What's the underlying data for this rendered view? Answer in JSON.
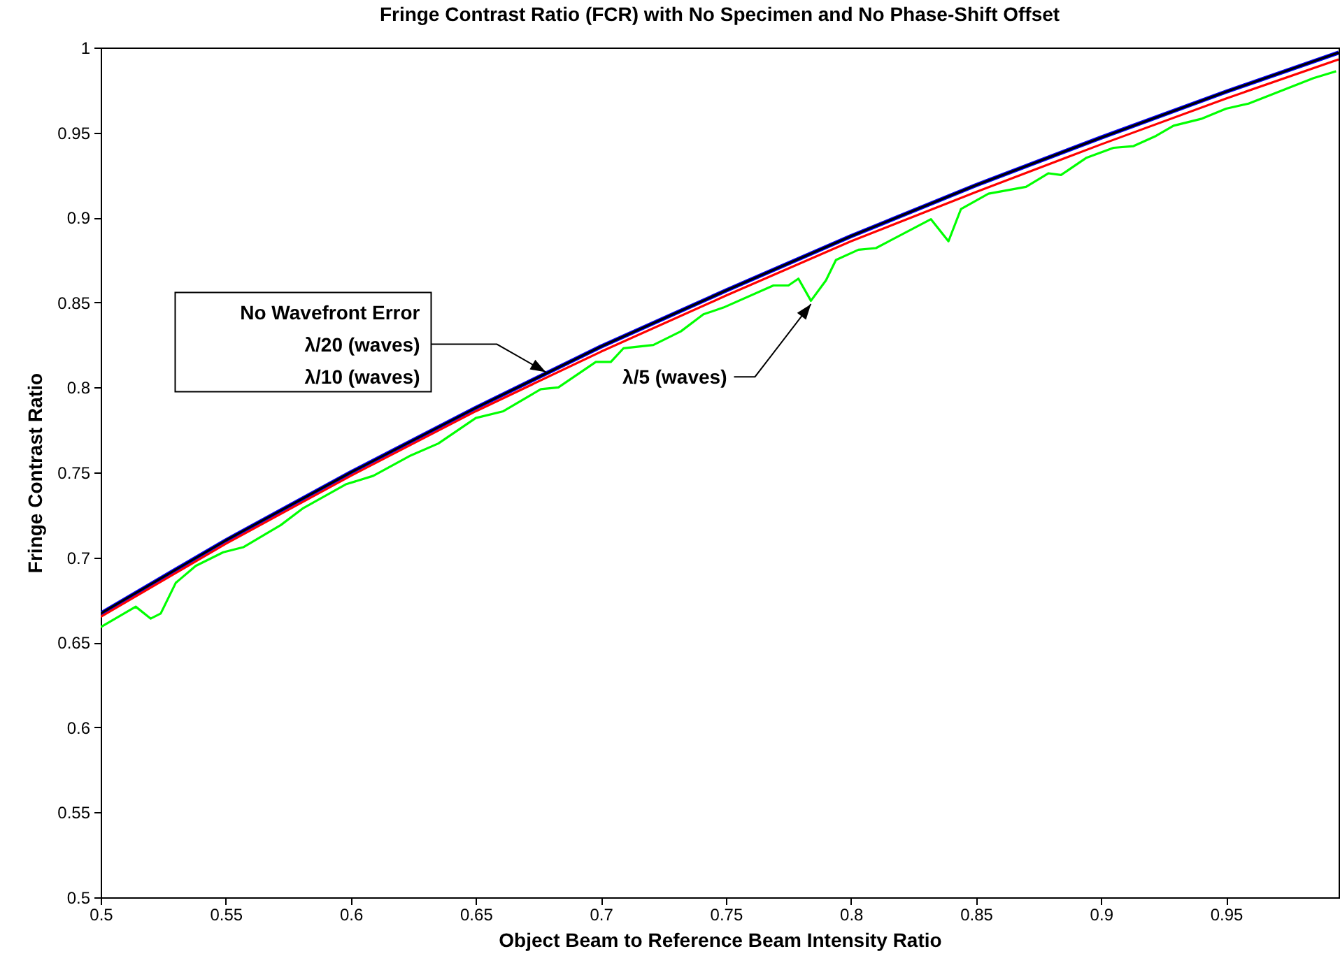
{
  "chart_data": {
    "type": "line",
    "title": "Fringe Contrast Ratio (FCR) with No Specimen and No Phase-Shift Offset",
    "xlabel": "Object Beam to Reference Beam Intensity Ratio",
    "ylabel": "Fringe Contrast Ratio",
    "xlim": [
      0.5,
      0.995
    ],
    "ylim": [
      0.5,
      1
    ],
    "xticks": [
      0.5,
      0.55,
      0.6,
      0.65,
      0.7,
      0.75,
      0.8,
      0.85,
      0.9,
      0.95
    ],
    "yticks": [
      0.5,
      0.55,
      0.6,
      0.65,
      0.7,
      0.75,
      0.8,
      0.85,
      0.9,
      0.95,
      1
    ],
    "grid": false,
    "line_style": "solid",
    "x": [
      0.5,
      0.55,
      0.6,
      0.65,
      0.7,
      0.75,
      0.8,
      0.85,
      0.9,
      0.95,
      0.995
    ],
    "series": [
      {
        "color": "#0000ff",
        "values": [
          0.667,
          0.71,
          0.75,
          0.788,
          0.824,
          0.857,
          0.889,
          0.919,
          0.947,
          0.974,
          0.997
        ]
      },
      {
        "color": "#000000",
        "values": [
          0.667,
          0.71,
          0.75,
          0.788,
          0.824,
          0.857,
          0.889,
          0.919,
          0.947,
          0.974,
          0.997
        ]
      },
      {
        "color": "#ff0000",
        "values": [
          0.665,
          0.708,
          0.748,
          0.786,
          0.821,
          0.854,
          0.886,
          0.915,
          0.943,
          0.97,
          0.993
        ]
      },
      {
        "color": "#00ff00",
        "x": [
          0.5,
          0.514,
          0.52,
          0.524,
          0.53,
          0.538,
          0.549,
          0.557,
          0.572,
          0.581,
          0.598,
          0.609,
          0.624,
          0.635,
          0.65,
          0.661,
          0.676,
          0.683,
          0.698,
          0.704,
          0.709,
          0.721,
          0.732,
          0.741,
          0.749,
          0.769,
          0.775,
          0.779,
          0.784,
          0.79,
          0.794,
          0.803,
          0.81,
          0.832,
          0.839,
          0.844,
          0.855,
          0.87,
          0.879,
          0.884,
          0.894,
          0.905,
          0.913,
          0.922,
          0.929,
          0.94,
          0.95,
          0.959,
          0.985,
          0.994
        ],
        "values": [
          0.659,
          0.671,
          0.664,
          0.667,
          0.685,
          0.695,
          0.703,
          0.706,
          0.719,
          0.729,
          0.743,
          0.748,
          0.76,
          0.767,
          0.782,
          0.786,
          0.799,
          0.8,
          0.815,
          0.815,
          0.823,
          0.825,
          0.833,
          0.843,
          0.847,
          0.86,
          0.86,
          0.864,
          0.851,
          0.863,
          0.875,
          0.881,
          0.882,
          0.899,
          0.886,
          0.905,
          0.914,
          0.918,
          0.926,
          0.925,
          0.935,
          0.941,
          0.942,
          0.948,
          0.954,
          0.958,
          0.964,
          0.967,
          0.982,
          0.986
        ]
      }
    ],
    "annotations": [
      {
        "text": "No Wavefront Error",
        "x": 0.678,
        "y": 0.809
      },
      "λ/20 (waves)",
      "λ/10 (waves)",
      {
        "text": "λ/5 (waves)",
        "x": 0.784,
        "y": 0.849
      }
    ]
  }
}
